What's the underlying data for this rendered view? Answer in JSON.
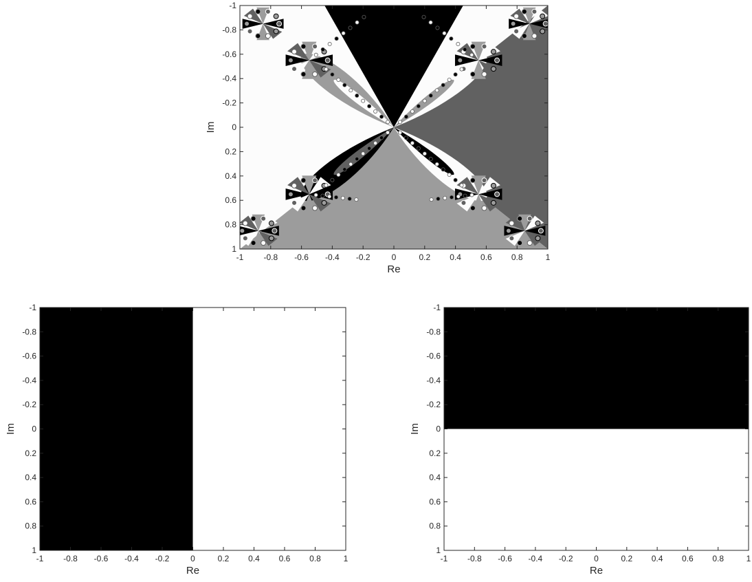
{
  "chart_data": [
    {
      "type": "heatmap",
      "title": "",
      "xlabel": "Re",
      "ylabel": "Im",
      "xlim": [
        -1,
        1
      ],
      "ylim": [
        -1,
        1
      ],
      "y_direction": "reversed",
      "grid": false,
      "colormap": "gray (4 basins)",
      "x_ticks": [
        "-1",
        "-0.8",
        "-0.6",
        "-0.4",
        "-0.2",
        "0",
        "0.2",
        "0.4",
        "0.6",
        "0.8",
        "1"
      ],
      "y_ticks": [
        "-1",
        "-0.8",
        "-0.6",
        "-0.4",
        "-0.2",
        "0",
        "0.2",
        "0.4",
        "0.6",
        "0.8",
        "1"
      ],
      "basin_colors": [
        "#000000",
        "#616161",
        "#9c9c9c",
        "#fcfcfc"
      ],
      "note_pattern": "4-fold fractal basin boundaries (Newton-like), roots near ±0.55±0.55i"
    },
    {
      "type": "heatmap",
      "title": "",
      "xlabel": "Re",
      "ylabel": "Im",
      "xlim": [
        -1,
        1
      ],
      "ylim": [
        -1,
        1
      ],
      "y_direction": "reversed",
      "grid": false,
      "x_ticks": [
        "-1",
        "-0.8",
        "-0.6",
        "-0.4",
        "-0.2",
        "0",
        "0.2",
        "0.4",
        "0.6",
        "0.8",
        "1"
      ],
      "y_ticks": [
        "-1",
        "-0.8",
        "-0.6",
        "-0.4",
        "-0.2",
        "0",
        "0.2",
        "0.4",
        "0.6",
        "0.8",
        "1"
      ],
      "regions": [
        {
          "color": "#000000",
          "re_range": [
            -1,
            0
          ]
        },
        {
          "color": "#ffffff",
          "re_range": [
            0,
            1
          ]
        }
      ]
    },
    {
      "type": "heatmap",
      "title": "",
      "xlabel": "Re",
      "ylabel": "Im",
      "xlim": [
        -1,
        1
      ],
      "ylim": [
        -1,
        1
      ],
      "y_direction": "reversed",
      "grid": false,
      "x_ticks": [
        "-1",
        "-0.8",
        "-0.6",
        "-0.4",
        "-0.2",
        "0",
        "0.2",
        "0.4",
        "0.6",
        "0.8",
        "1"
      ],
      "y_ticks": [
        "-1",
        "-0.8",
        "-0.6",
        "-0.4",
        "-0.2",
        "0",
        "0.2",
        "0.4",
        "0.6",
        "0.8",
        "1"
      ],
      "regions": [
        {
          "color": "#000000",
          "im_range": [
            -1,
            0
          ]
        },
        {
          "color": "#ffffff",
          "im_range": [
            0,
            1
          ]
        }
      ]
    }
  ]
}
